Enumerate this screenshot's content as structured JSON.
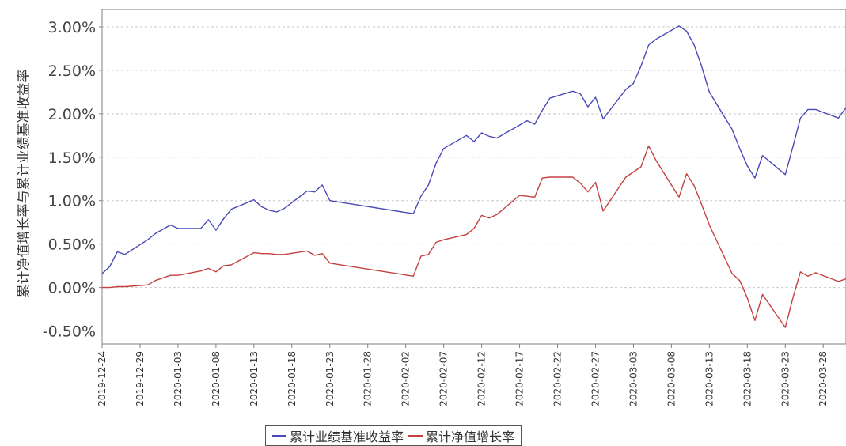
{
  "chart_data": {
    "type": "line",
    "title": "",
    "xlabel": "",
    "ylabel": "累计净值增长率与累计业绩基准收益率",
    "y_ticks": [
      "3.00%",
      "2.50%",
      "2.00%",
      "1.50%",
      "1.00%",
      "0.50%",
      "0.00%",
      "-0.50%"
    ],
    "y_tick_values": [
      3.0,
      2.5,
      2.0,
      1.5,
      1.0,
      0.5,
      0.0,
      -0.5
    ],
    "ylim": [
      -0.65,
      3.2
    ],
    "x_ticks": [
      "2019-12-24",
      "2019-12-29",
      "2020-01-03",
      "2020-01-08",
      "2020-01-13",
      "2020-01-18",
      "2020-01-23",
      "2020-01-28",
      "2020-02-02",
      "2020-02-07",
      "2020-02-12",
      "2020-02-17",
      "2020-02-22",
      "2020-02-27",
      "2020-03-03",
      "2020-03-08",
      "2020-03-13",
      "2020-03-18",
      "2020-03-23",
      "2020-03-28"
    ],
    "xlim": [
      "2019-12-24",
      "2020-03-31"
    ],
    "grid": true,
    "legend_position": "bottom",
    "series": [
      {
        "name": "累计业绩基准收益率",
        "color": "#4a4ab8",
        "x": [
          "2019-12-24",
          "2019-12-25",
          "2019-12-26",
          "2019-12-27",
          "2019-12-30",
          "2019-12-31",
          "2020-01-02",
          "2020-01-03",
          "2020-01-06",
          "2020-01-07",
          "2020-01-08",
          "2020-01-09",
          "2020-01-10",
          "2020-01-13",
          "2020-01-14",
          "2020-01-15",
          "2020-01-16",
          "2020-01-17",
          "2020-01-20",
          "2020-01-21",
          "2020-01-22",
          "2020-01-23",
          "2020-02-03",
          "2020-02-04",
          "2020-02-05",
          "2020-02-06",
          "2020-02-07",
          "2020-02-10",
          "2020-02-11",
          "2020-02-12",
          "2020-02-13",
          "2020-02-14",
          "2020-02-17",
          "2020-02-18",
          "2020-02-19",
          "2020-02-20",
          "2020-02-21",
          "2020-02-24",
          "2020-02-25",
          "2020-02-26",
          "2020-02-27",
          "2020-02-28",
          "2020-03-02",
          "2020-03-03",
          "2020-03-04",
          "2020-03-05",
          "2020-03-06",
          "2020-03-09",
          "2020-03-10",
          "2020-03-11",
          "2020-03-12",
          "2020-03-13",
          "2020-03-16",
          "2020-03-17",
          "2020-03-18",
          "2020-03-19",
          "2020-03-20",
          "2020-03-23",
          "2020-03-24",
          "2020-03-25",
          "2020-03-26",
          "2020-03-27",
          "2020-03-30",
          "2020-03-31"
        ],
        "values": [
          0.16,
          0.24,
          0.41,
          0.38,
          0.55,
          0.62,
          0.72,
          0.68,
          0.68,
          0.78,
          0.66,
          0.79,
          0.9,
          1.01,
          0.93,
          0.89,
          0.87,
          0.91,
          1.11,
          1.1,
          1.18,
          1.0,
          0.85,
          1.05,
          1.18,
          1.43,
          1.6,
          1.75,
          1.68,
          1.78,
          1.74,
          1.72,
          1.87,
          1.92,
          1.88,
          2.04,
          2.18,
          2.26,
          2.23,
          2.08,
          2.19,
          1.94,
          2.28,
          2.35,
          2.55,
          2.79,
          2.86,
          3.01,
          2.95,
          2.79,
          2.54,
          2.25,
          1.82,
          1.6,
          1.4,
          1.26,
          1.52,
          1.3,
          1.62,
          1.95,
          2.05,
          2.05,
          1.95,
          2.07
        ]
      },
      {
        "name": "累计净值增长率",
        "color": "#c44040",
        "x": [
          "2019-12-24",
          "2019-12-25",
          "2019-12-26",
          "2019-12-27",
          "2019-12-30",
          "2019-12-31",
          "2020-01-02",
          "2020-01-03",
          "2020-01-06",
          "2020-01-07",
          "2020-01-08",
          "2020-01-09",
          "2020-01-10",
          "2020-01-13",
          "2020-01-14",
          "2020-01-15",
          "2020-01-16",
          "2020-01-17",
          "2020-01-20",
          "2020-01-21",
          "2020-01-22",
          "2020-01-23",
          "2020-02-03",
          "2020-02-04",
          "2020-02-05",
          "2020-02-06",
          "2020-02-07",
          "2020-02-10",
          "2020-02-11",
          "2020-02-12",
          "2020-02-13",
          "2020-02-14",
          "2020-02-17",
          "2020-02-18",
          "2020-02-19",
          "2020-02-20",
          "2020-02-21",
          "2020-02-24",
          "2020-02-25",
          "2020-02-26",
          "2020-02-27",
          "2020-02-28",
          "2020-03-02",
          "2020-03-03",
          "2020-03-04",
          "2020-03-05",
          "2020-03-06",
          "2020-03-09",
          "2020-03-10",
          "2020-03-11",
          "2020-03-12",
          "2020-03-13",
          "2020-03-16",
          "2020-03-17",
          "2020-03-18",
          "2020-03-19",
          "2020-03-20",
          "2020-03-23",
          "2020-03-24",
          "2020-03-25",
          "2020-03-26",
          "2020-03-27",
          "2020-03-30",
          "2020-03-31"
        ],
        "values": [
          0.0,
          0.0,
          0.01,
          0.01,
          0.03,
          0.08,
          0.14,
          0.14,
          0.19,
          0.22,
          0.18,
          0.25,
          0.26,
          0.4,
          0.39,
          0.39,
          0.38,
          0.38,
          0.42,
          0.37,
          0.39,
          0.28,
          0.13,
          0.36,
          0.38,
          0.52,
          0.55,
          0.61,
          0.68,
          0.83,
          0.8,
          0.84,
          1.06,
          1.05,
          1.04,
          1.26,
          1.27,
          1.27,
          1.2,
          1.1,
          1.21,
          0.88,
          1.27,
          1.33,
          1.39,
          1.63,
          1.46,
          1.04,
          1.31,
          1.17,
          0.95,
          0.72,
          0.16,
          0.08,
          -0.12,
          -0.38,
          -0.08,
          -0.46,
          -0.12,
          0.18,
          0.13,
          0.17,
          0.07,
          0.1
        ]
      }
    ]
  }
}
